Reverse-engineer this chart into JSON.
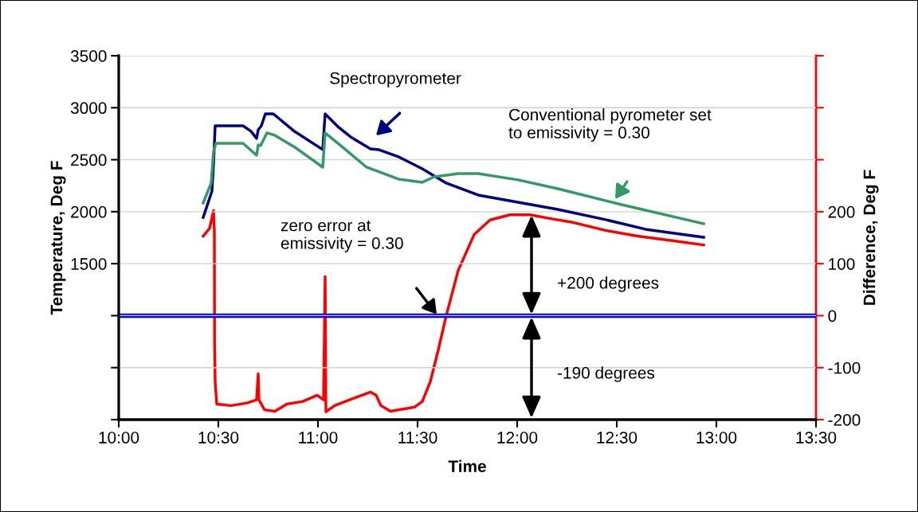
{
  "chart_data": {
    "type": "line",
    "xlabel": "Time",
    "ylabel": "Temperature, Deg F",
    "y2label": "Difference, Deg F",
    "xlim": [
      10,
      13.5
    ],
    "xticks": [
      {
        "value": 10,
        "label": "10:00"
      },
      {
        "value": 10.5,
        "label": "10:30"
      },
      {
        "value": 11,
        "label": "11:00"
      },
      {
        "value": 11.5,
        "label": "11:30"
      },
      {
        "value": 12,
        "label": "12:00"
      },
      {
        "value": 12.5,
        "label": "12:30"
      },
      {
        "value": 13,
        "label": "13:00"
      },
      {
        "value": 13.5,
        "label": "13:30"
      }
    ],
    "ylim": [
      0,
      3500
    ],
    "yticks": [
      {
        "value": 0,
        "label": null
      },
      {
        "value": 500,
        "label": null
      },
      {
        "value": 1000,
        "label": null
      },
      1500,
      2000,
      2500,
      3000,
      3500
    ],
    "y2lim": [
      -200,
      500
    ],
    "y2ticks": [
      -200,
      -100,
      0,
      100,
      200,
      {
        "value": 300,
        "label": null
      },
      {
        "value": 400,
        "label": null
      },
      {
        "value": 500,
        "label": null
      }
    ],
    "grid": "y",
    "marker": "none",
    "line_style": "solid",
    "series": [
      {
        "color": "#000080",
        "x": [
          10.424,
          10.468,
          10.476,
          10.484,
          10.624,
          10.664,
          10.692,
          10.7,
          10.716,
          10.736,
          10.776,
          10.884,
          11.024,
          11.036,
          11.104,
          11.164,
          11.264,
          11.304,
          11.404,
          11.524,
          11.644,
          11.804,
          12.004,
          12.204,
          12.444,
          12.644,
          12.936
        ],
        "values": [
          1945,
          2198,
          2466,
          2826,
          2826,
          2773,
          2704,
          2788,
          2826,
          2941,
          2941,
          2770,
          2597,
          2941,
          2811,
          2719,
          2604,
          2597,
          2528,
          2413,
          2275,
          2160,
          2091,
          2022,
          1923,
          1831,
          1754
        ]
      },
      {
        "color": "#339966",
        "x": [
          10.424,
          10.464,
          10.476,
          10.488,
          10.624,
          10.692,
          10.7,
          10.712,
          10.744,
          10.784,
          10.884,
          11.024,
          11.036,
          11.124,
          11.244,
          11.404,
          11.524,
          11.584,
          11.704,
          11.804,
          12.004,
          12.204,
          12.524,
          12.936
        ],
        "values": [
          2084,
          2275,
          2581,
          2658,
          2658,
          2543,
          2643,
          2635,
          2758,
          2735,
          2620,
          2428,
          2758,
          2620,
          2428,
          2313,
          2283,
          2336,
          2367,
          2367,
          2306,
          2221,
          2068,
          1884
        ]
      },
      {
        "color": "#ff0000",
        "axis": "y2",
        "x": [
          10.424,
          10.456,
          10.476,
          10.48,
          10.481,
          10.484,
          10.492,
          10.564,
          10.644,
          10.692,
          10.7,
          10.704,
          10.732,
          10.784,
          10.844,
          10.924,
          10.996,
          11.028,
          11.036,
          11.04,
          11.084,
          11.164,
          11.264,
          11.292,
          11.316,
          11.364,
          11.484,
          11.524,
          11.564,
          11.604,
          11.644,
          11.704,
          11.784,
          11.864,
          11.964,
          12.064,
          12.164,
          12.284,
          12.444,
          12.604,
          12.764,
          12.936
        ],
        "values": [
          153,
          168,
          202,
          164,
          -50,
          -127,
          -170,
          -173,
          -168,
          -162,
          -112,
          -162,
          -181,
          -184,
          -170,
          -165,
          -153,
          -162,
          75,
          -185,
          -173,
          -161,
          -147,
          -153,
          -173,
          -184,
          -176,
          -165,
          -127,
          -66,
          0,
          87,
          156,
          184,
          194,
          194,
          187,
          179,
          164,
          153,
          145,
          136
        ]
      }
    ],
    "ref_lines": [
      {
        "axis": "y2",
        "value": 0,
        "color": "#0000ff",
        "line_style": "solid"
      }
    ],
    "annotations": [
      "Spectropyrometer",
      "Conventional pyrometer set\nto emissivity = 0.30",
      "zero error at\nemissivity = 0.30",
      "+200 degrees",
      "-190 degrees"
    ]
  }
}
